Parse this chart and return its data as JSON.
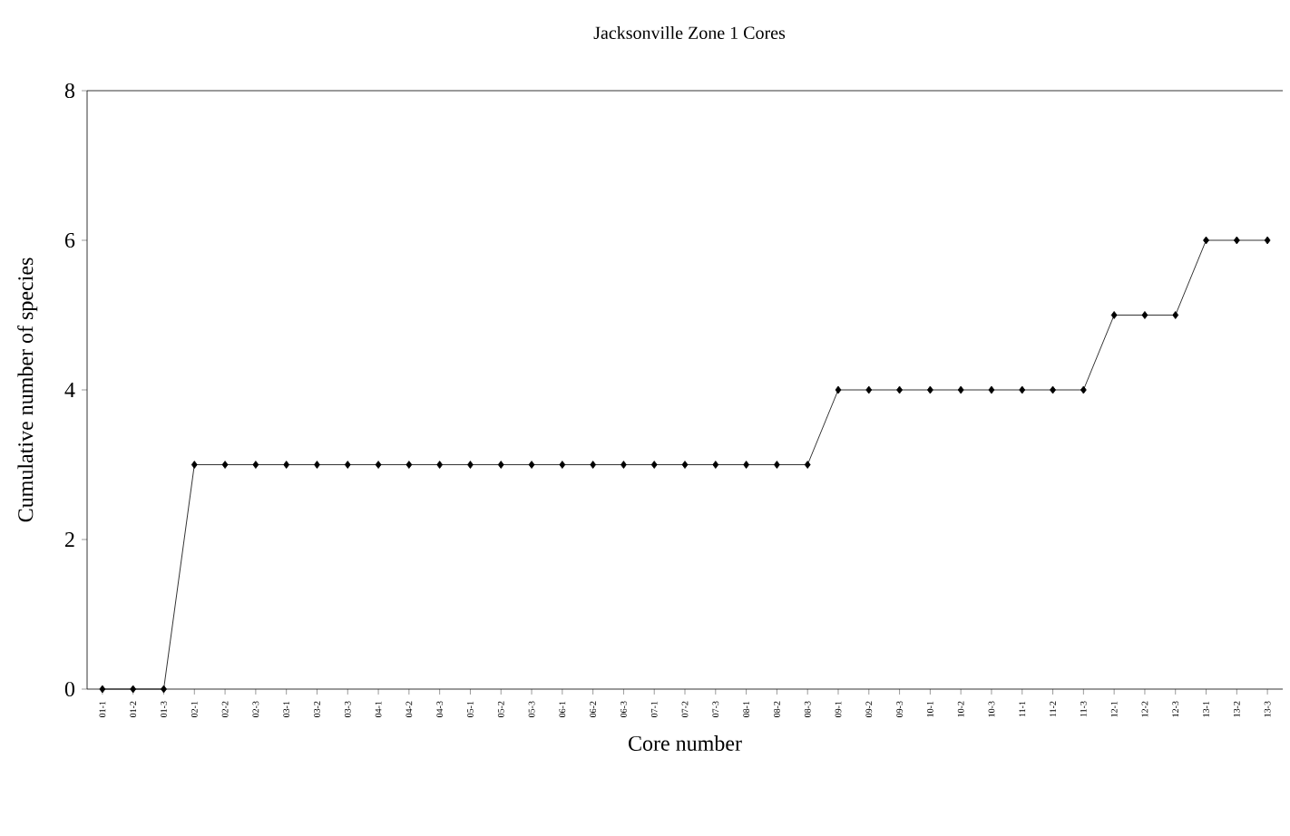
{
  "chart_data": {
    "type": "line",
    "title": "Jacksonville Zone 1 Cores",
    "xlabel": "Core number",
    "ylabel": "Cumulative number of species",
    "categories": [
      "01-1",
      "01-2",
      "01-3",
      "02-1",
      "02-2",
      "02-3",
      "03-1",
      "03-2",
      "03-3",
      "04-1",
      "04-2",
      "04-3",
      "05-1",
      "05-2",
      "05-3",
      "06-1",
      "06-2",
      "06-3",
      "07-1",
      "07-2",
      "07-3",
      "08-1",
      "08-2",
      "08-3",
      "09-1",
      "09-2",
      "09-3",
      "10-1",
      "10-2",
      "10-3",
      "11-1",
      "11-2",
      "11-3",
      "12-1",
      "12-2",
      "12-3",
      "13-1",
      "13-2",
      "13-3"
    ],
    "values": [
      0,
      0,
      0,
      3,
      3,
      3,
      3,
      3,
      3,
      3,
      3,
      3,
      3,
      3,
      3,
      3,
      3,
      3,
      3,
      3,
      3,
      3,
      3,
      3,
      4,
      4,
      4,
      4,
      4,
      4,
      4,
      4,
      4,
      5,
      5,
      5,
      6,
      6,
      6
    ],
    "color": "#000000",
    "marker": "diamond",
    "line_style": "solid",
    "ylim": [
      0,
      8
    ],
    "yticks": [
      0,
      2,
      4,
      6,
      8
    ],
    "grid": false
  }
}
